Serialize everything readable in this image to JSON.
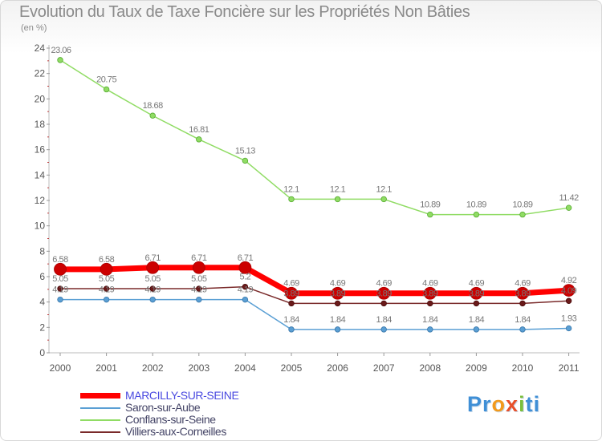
{
  "title": "Evolution du Taux de Taxe Foncière sur les Propriétés Non Bâties",
  "subtitle": "(en %)",
  "logo": {
    "p1": "Pr",
    "p2": "o",
    "p3": "x",
    "p4": "i",
    "p5": "ti"
  },
  "chart_data": {
    "type": "line",
    "title": "Evolution du Taux de Taxe Foncière sur les Propriétés Non Bâties",
    "ylabel": "(en %)",
    "xlabel": "",
    "ylim": [
      0,
      24
    ],
    "yticks": [
      "0",
      "2",
      "4",
      "6",
      "8",
      "10",
      "12",
      "14",
      "16",
      "18",
      "20",
      "22",
      "24"
    ],
    "categories": [
      "2000",
      "2001",
      "2002",
      "2003",
      "2004",
      "2005",
      "2006",
      "2007",
      "2008",
      "2009",
      "2010",
      "2011"
    ],
    "series": [
      {
        "name": "MARCILLY-SUR-SEINE",
        "color": "#ff0000",
        "values": [
          6.58,
          6.58,
          6.71,
          6.71,
          6.71,
          4.69,
          4.69,
          4.69,
          4.69,
          4.69,
          4.69,
          4.92
        ],
        "labels": [
          "6.58",
          "6.58",
          "6.71",
          "6.71",
          "6.71",
          "4.69",
          "4.69",
          "4.69",
          "4.69",
          "4.69",
          "4.69",
          "4.92"
        ]
      },
      {
        "name": "Saron-sur-Aube",
        "color": "#5a9fd4",
        "values": [
          4.19,
          4.19,
          4.19,
          4.19,
          4.19,
          1.84,
          1.84,
          1.84,
          1.84,
          1.84,
          1.84,
          1.93
        ],
        "labels": [
          "4.19",
          "4.19",
          "4.19",
          "4.19",
          "4.19",
          "1.84",
          "1.84",
          "1.84",
          "1.84",
          "1.84",
          "1.84",
          "1.93"
        ]
      },
      {
        "name": "Conflans-sur-Seine",
        "color": "#90dc64",
        "values": [
          23.06,
          20.75,
          18.68,
          16.81,
          15.13,
          12.1,
          12.1,
          12.1,
          10.89,
          10.89,
          10.89,
          11.42
        ],
        "labels": [
          "23.06",
          "20.75",
          "18.68",
          "16.81",
          "15.13",
          "12.1",
          "12.1",
          "12.1",
          "10.89",
          "10.89",
          "10.89",
          "11.42"
        ]
      },
      {
        "name": "Villiers-aux-Corneilles",
        "color": "#7a2a2a",
        "values": [
          5.05,
          5.05,
          5.05,
          5.05,
          5.2,
          3.89,
          3.89,
          3.89,
          3.89,
          3.89,
          3.89,
          4.09
        ],
        "labels": [
          "5.05",
          "5.05",
          "5.05",
          "5.05",
          "5.2",
          "3.89",
          "3.89",
          "3.89",
          "3.89",
          "3.89",
          "3.89",
          "4.09"
        ]
      }
    ],
    "legend": "bottom-left",
    "grid": false
  }
}
